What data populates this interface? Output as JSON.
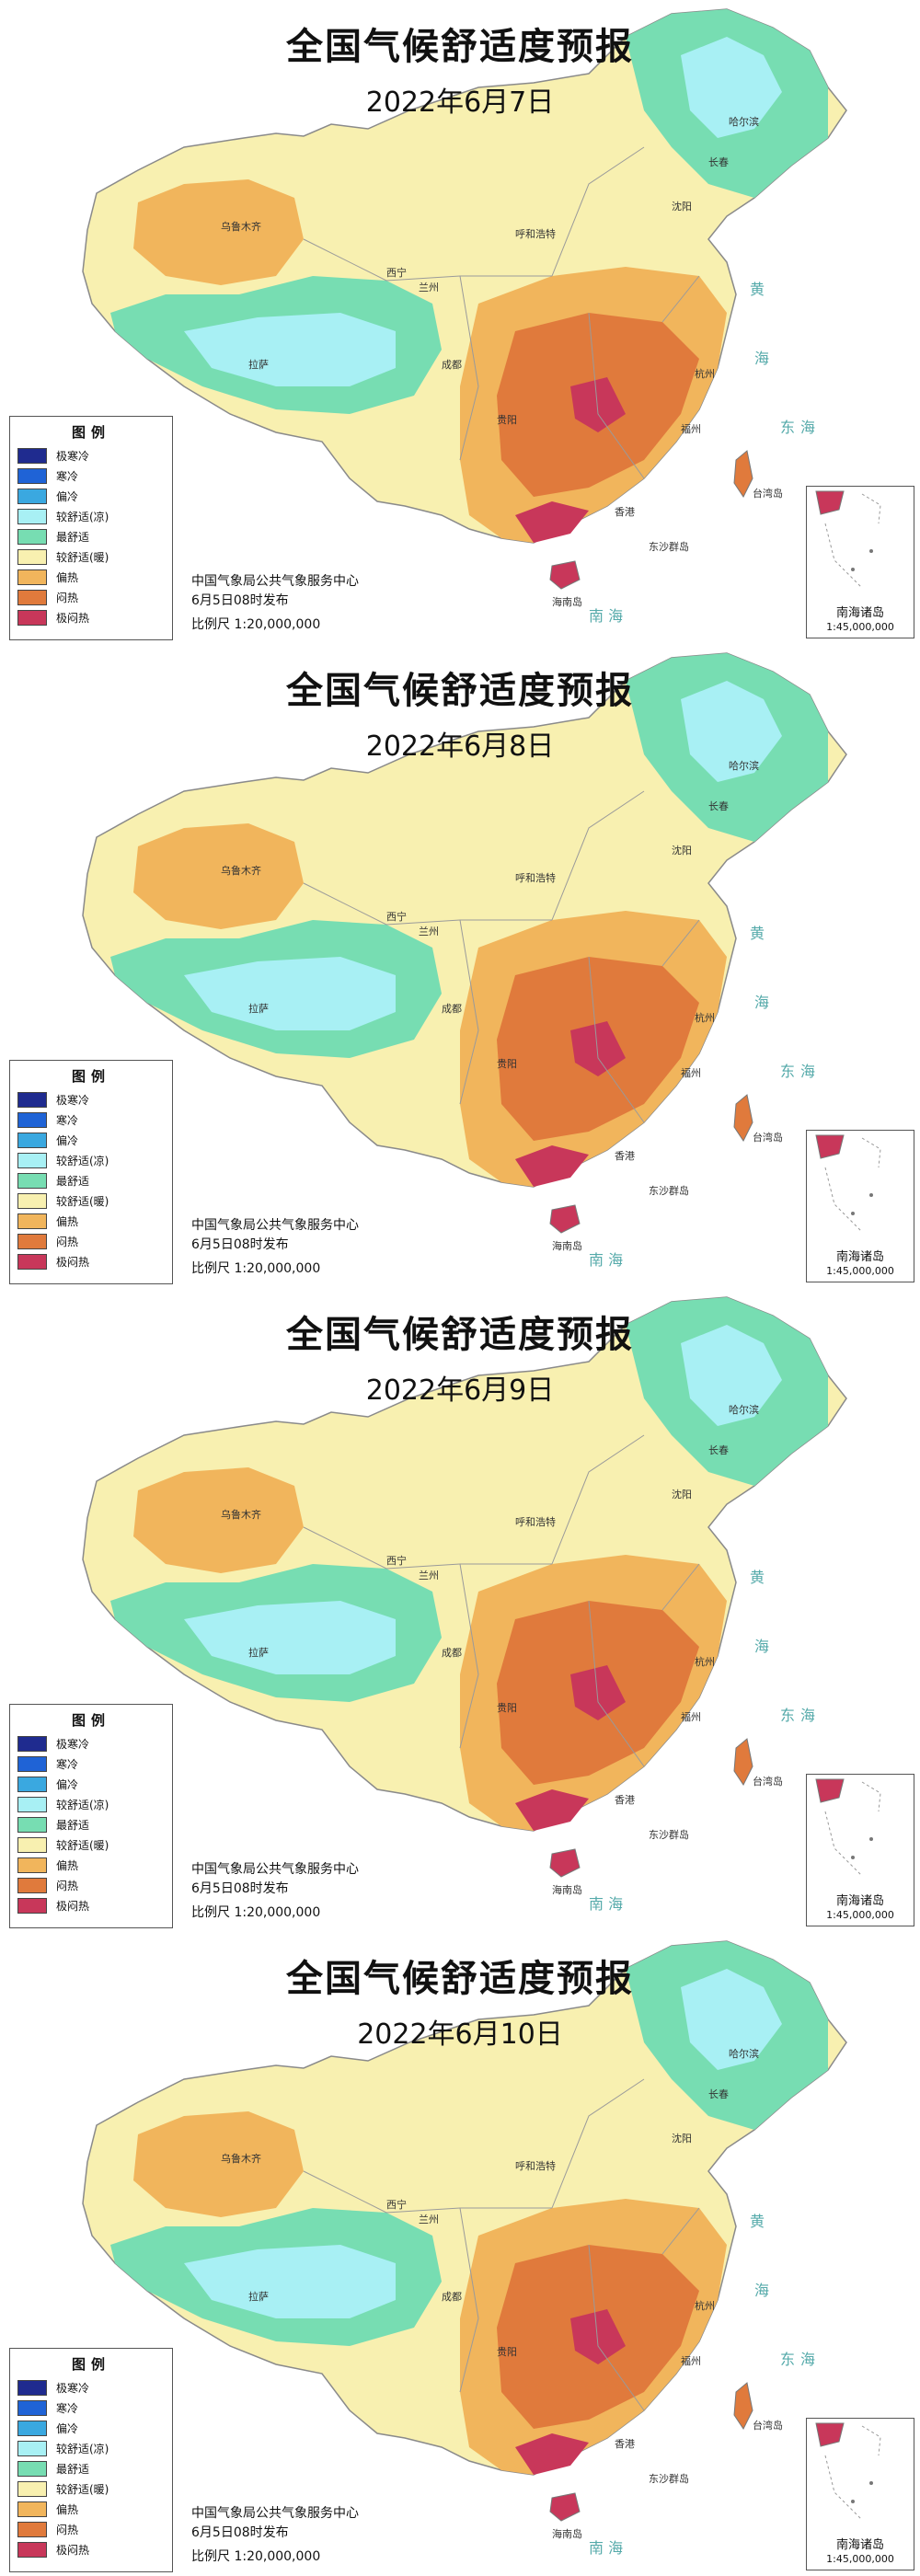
{
  "maps": [
    {
      "title": "全国气候舒适度预报",
      "date": "2022年6月7日"
    },
    {
      "title": "全国气候舒适度预报",
      "date": "2022年6月8日"
    },
    {
      "title": "全国气候舒适度预报",
      "date": "2022年6月9日"
    },
    {
      "title": "全国气候舒适度预报",
      "date": "2022年6月10日"
    }
  ],
  "legend": {
    "title": "图例",
    "items": [
      {
        "label": "极寒冷",
        "color": "#1f2b8f"
      },
      {
        "label": "寒冷",
        "color": "#1f63d6"
      },
      {
        "label": "偏冷",
        "color": "#3aa8e0"
      },
      {
        "label": "较舒适(凉)",
        "color": "#a8f0f4"
      },
      {
        "label": "最舒适",
        "color": "#77ddb2"
      },
      {
        "label": "较舒适(暖)",
        "color": "#f8f0b0"
      },
      {
        "label": "偏热",
        "color": "#f1b55c"
      },
      {
        "label": "闷热",
        "color": "#e07a3c"
      },
      {
        "label": "极闷热",
        "color": "#c8375a"
      }
    ]
  },
  "source": {
    "agency": "中国气象局公共气象服务中心",
    "issued": "6月5日08时发布",
    "scale": "比例尺 1:20,000,000"
  },
  "inset": {
    "name": "南海诸岛",
    "scale": "1:45,000,000"
  },
  "places": {
    "harbin": "哈尔滨",
    "changchun": "长春",
    "shenyang": "沈阳",
    "hohhot": "呼和浩特",
    "xining": "西宁",
    "lanzhou": "兰州",
    "chengdu": "成都",
    "guiyang": "贵阳",
    "hangzhou": "杭州",
    "fuzhou": "福州",
    "hongkong": "香港",
    "taiwan": "台湾岛",
    "hainan": "海南岛",
    "dongsha": "东沙群岛",
    "lhasa": "拉萨",
    "urumqi": "乌鲁木齐"
  },
  "seas": {
    "yellow": "黄",
    "sea": "海",
    "east": "东",
    "south": "南",
    "south_sea": "南 海"
  }
}
